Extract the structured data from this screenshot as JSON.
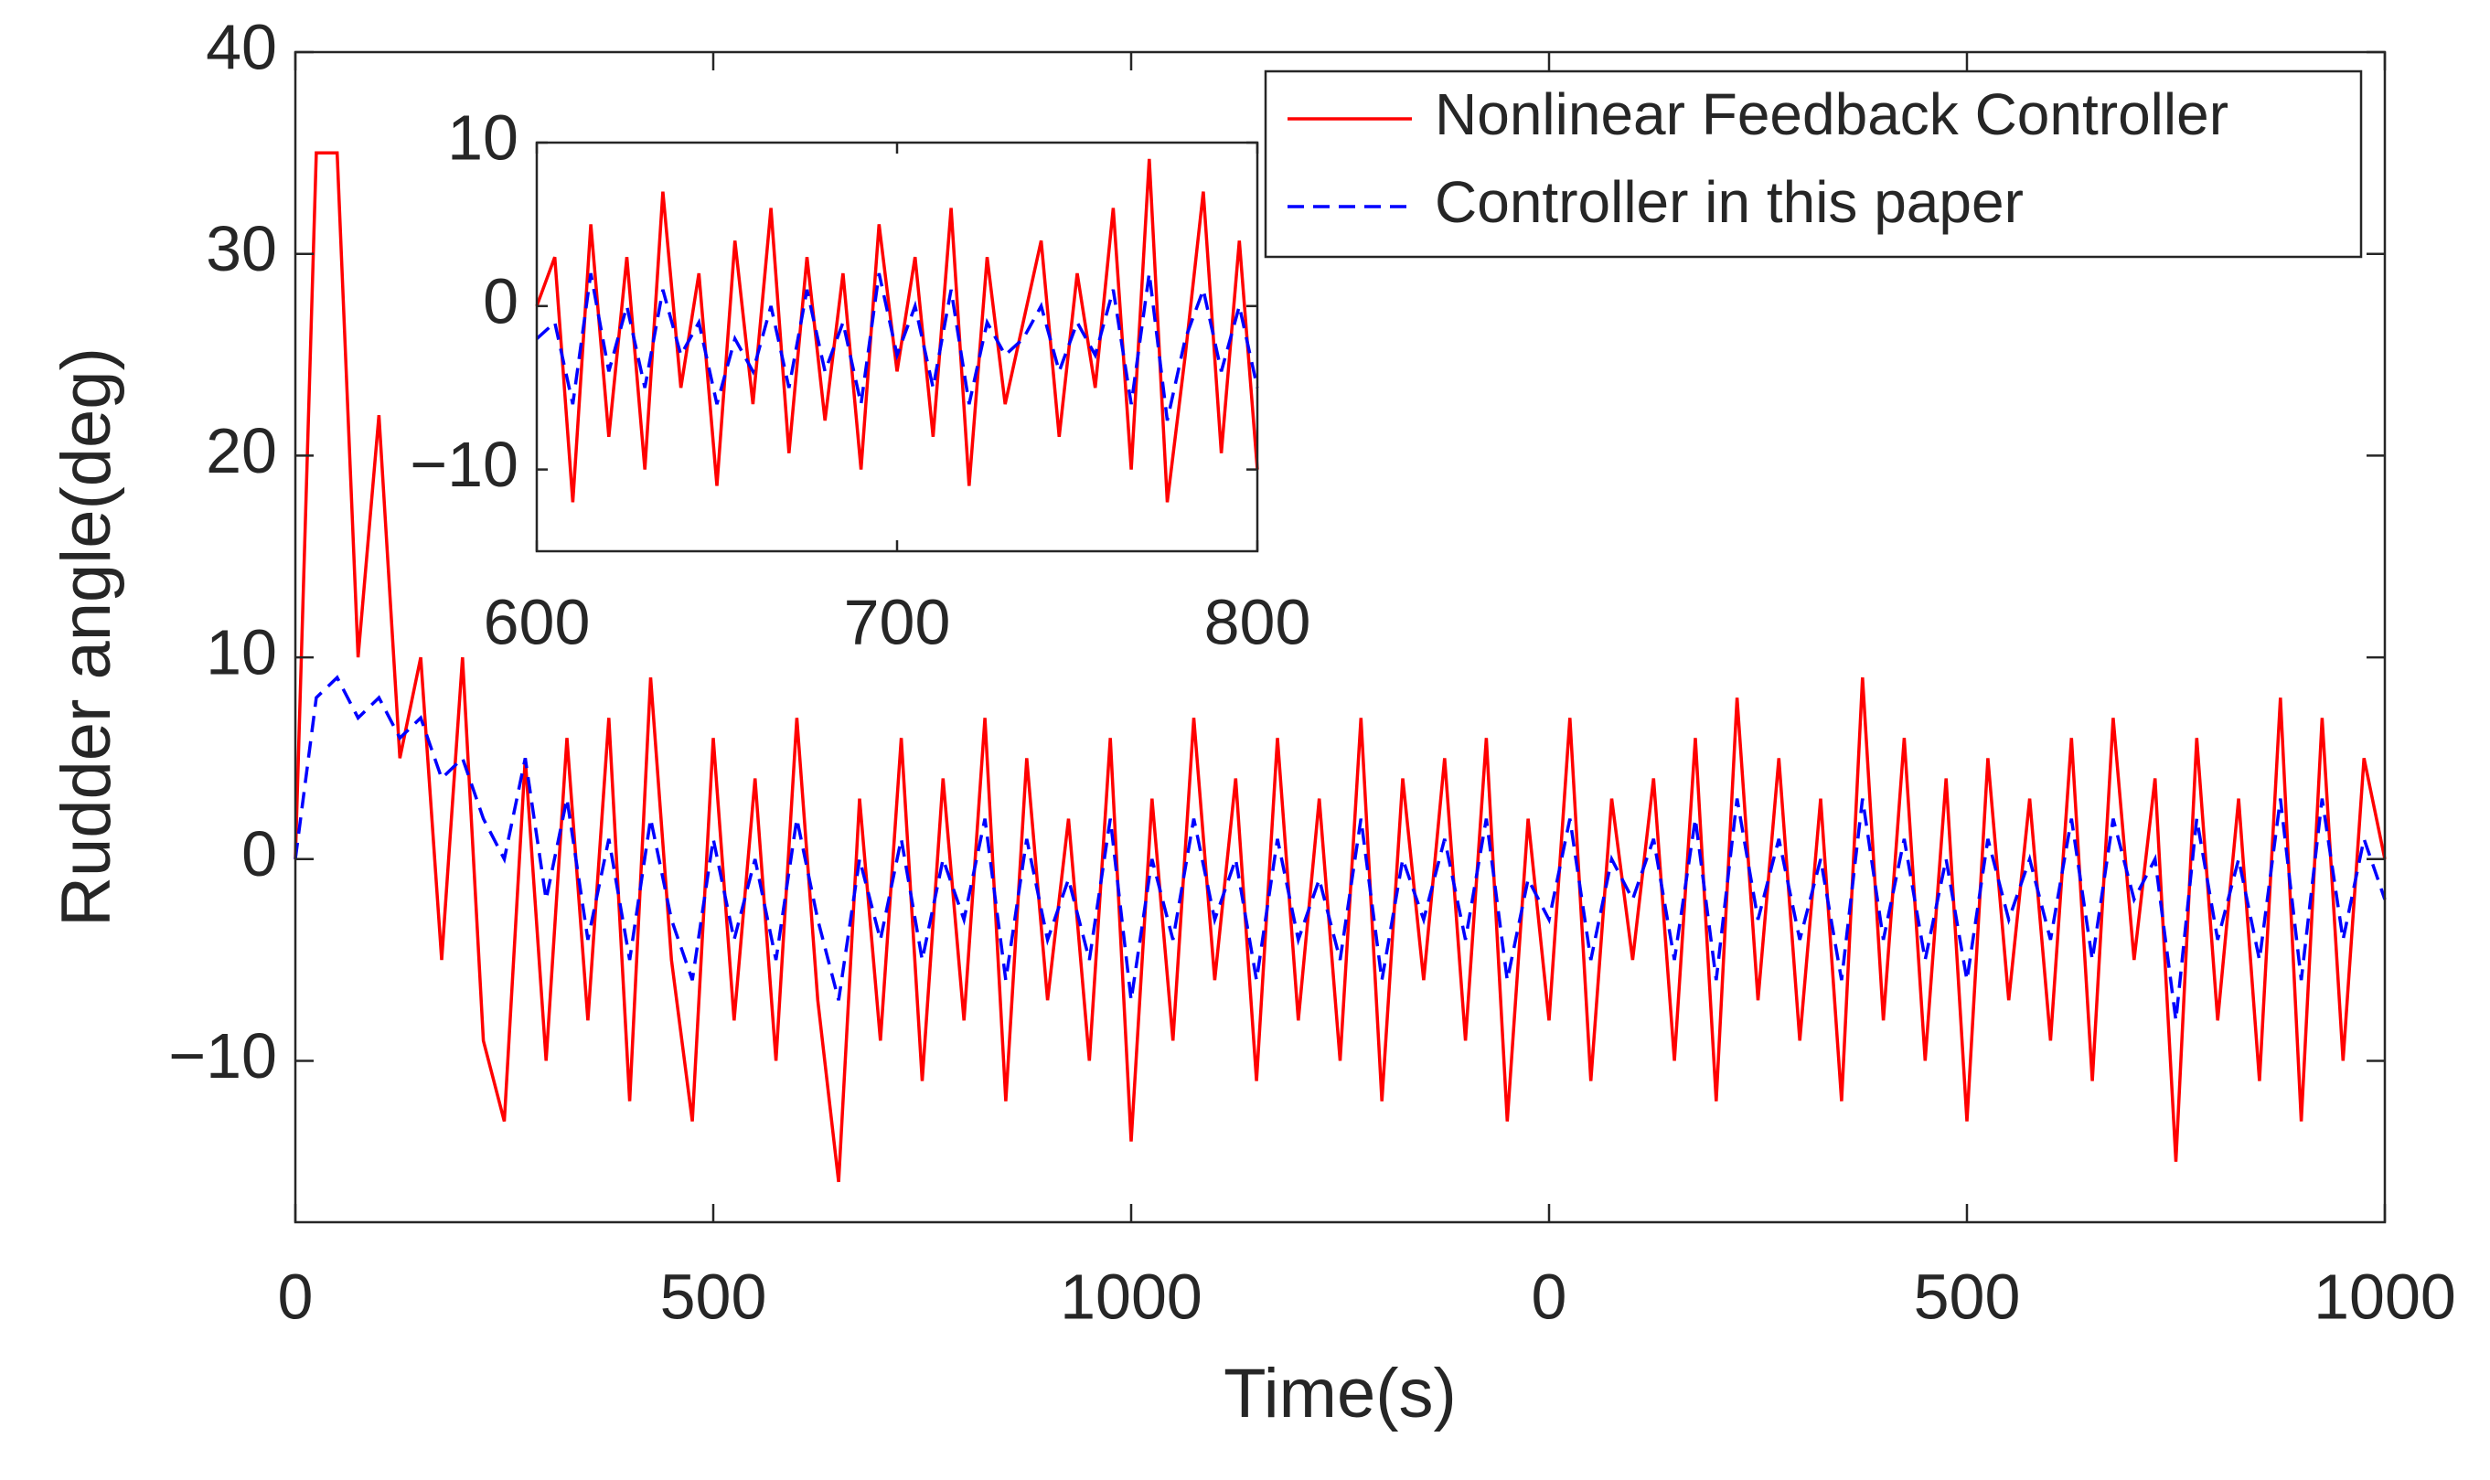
{
  "chart_data": [
    {
      "type": "line",
      "xlabel": "Time(s)",
      "ylabel": "Rudder angle(deg)",
      "x": [
        0,
        25,
        50,
        75,
        100,
        125,
        150,
        175,
        200,
        225,
        250,
        275,
        300,
        325,
        350,
        375,
        400,
        425,
        450,
        475,
        500,
        525,
        550,
        575,
        600,
        625,
        650,
        675,
        700,
        725,
        750,
        775,
        800,
        825,
        850,
        875,
        900,
        925,
        950,
        975,
        1000,
        1025,
        1050,
        1075,
        1100,
        1125,
        1150,
        1175,
        1200,
        1225,
        1250,
        1275,
        1300,
        1325,
        1350,
        1375,
        1400,
        1425,
        1450,
        1475,
        1500,
        1525,
        1550,
        1575,
        1600,
        1625,
        1650,
        1675,
        1700,
        1725,
        1750,
        1775,
        1800,
        1825,
        1850,
        1875,
        1900,
        1925,
        1950,
        1975,
        2000,
        2025,
        2050,
        2075,
        2100,
        2125,
        2150,
        2175,
        2200,
        2225,
        2250,
        2275,
        2300,
        2325,
        2350,
        2375,
        2400,
        2425,
        2450,
        2475,
        2500
      ],
      "series": [
        {
          "name": "Nonlinear Feedback Controller",
          "color": "#ff0000",
          "dashed": false,
          "values": [
            0,
            35,
            35,
            10,
            22,
            5,
            10,
            -5,
            10,
            -9,
            -13,
            5,
            -10,
            6,
            -8,
            7,
            -12,
            9,
            -5,
            -13,
            6,
            -8,
            4,
            -10,
            7,
            -7,
            -16,
            3,
            -9,
            6,
            -11,
            4,
            -8,
            7,
            -12,
            5,
            -7,
            2,
            -10,
            6,
            -14,
            3,
            -9,
            7,
            -6,
            4,
            -11,
            6,
            -8,
            3,
            -10,
            7,
            -12,
            4,
            -6,
            5,
            -9,
            6,
            -13,
            2,
            -8,
            7,
            -11,
            3,
            -5,
            4,
            -10,
            6,
            -12,
            8,
            -7,
            5,
            -9,
            3,
            -12,
            9,
            -8,
            6,
            -10,
            4,
            -13,
            5,
            -7,
            3,
            -9,
            6,
            -11,
            7,
            -5,
            4,
            -15,
            6,
            -8,
            3,
            -11,
            8,
            -13,
            7,
            -10,
            5,
            0
          ]
        },
        {
          "name": "Controller in this paper",
          "color": "#0000ff",
          "dashed": true,
          "values": [
            0,
            8,
            9,
            7,
            8,
            6,
            7,
            4,
            5,
            2,
            0,
            5,
            -2,
            3,
            -4,
            1,
            -5,
            2,
            -3,
            -6,
            1,
            -4,
            0,
            -5,
            2,
            -3,
            -7,
            0,
            -4,
            1,
            -5,
            0,
            -3,
            2,
            -6,
            1,
            -4,
            -1,
            -5,
            2,
            -7,
            0,
            -4,
            2,
            -3,
            0,
            -6,
            1,
            -4,
            -1,
            -5,
            2,
            -6,
            0,
            -3,
            1,
            -4,
            2,
            -6,
            -1,
            -3,
            2,
            -5,
            0,
            -2,
            1,
            -5,
            2,
            -6,
            3,
            -3,
            1,
            -4,
            0,
            -6,
            3,
            -4,
            1,
            -5,
            0,
            -6,
            1,
            -3,
            0,
            -4,
            2,
            -5,
            2,
            -2,
            0,
            -8,
            2,
            -4,
            0,
            -5,
            3,
            -6,
            3,
            -4,
            1,
            -2
          ]
        }
      ],
      "xlim": [
        0,
        2500
      ],
      "xticks": [
        0,
        500,
        1000,
        {
          "value": 1500,
          "label": "0"
        },
        {
          "value": 2000,
          "label": "500"
        },
        {
          "value": 2500,
          "label": "1000"
        }
      ],
      "ylim": [
        -18,
        40
      ],
      "yticks": [
        {
          "value": -10,
          "label": "−10"
        },
        0,
        10,
        20,
        30,
        40
      ],
      "legend": "upper right"
    },
    {
      "type": "line",
      "x": [
        600,
        605,
        610,
        615,
        620,
        625,
        630,
        635,
        640,
        645,
        650,
        655,
        660,
        665,
        670,
        675,
        680,
        685,
        690,
        695,
        700,
        705,
        710,
        715,
        720,
        725,
        730,
        735,
        740,
        745,
        750,
        755,
        760,
        765,
        770,
        775,
        780,
        785,
        790,
        795,
        800
      ],
      "series": [
        {
          "color": "#ff0000",
          "dashed": false,
          "values": [
            0,
            3,
            -12,
            5,
            -8,
            3,
            -10,
            7,
            -5,
            2,
            -11,
            4,
            -6,
            6,
            -9,
            3,
            -7,
            2,
            -10,
            5,
            -4,
            3,
            -8,
            6,
            -11,
            3,
            -6,
            -1,
            4,
            -8,
            2,
            -5,
            6,
            -10,
            9,
            -12,
            -3,
            7,
            -9,
            4,
            -10
          ]
        },
        {
          "color": "#0000ff",
          "dashed": true,
          "values": [
            -2,
            -1,
            -6,
            2,
            -4,
            0,
            -5,
            1,
            -3,
            -1,
            -6,
            -2,
            -4,
            0,
            -5,
            1,
            -4,
            -1,
            -6,
            2,
            -3,
            0,
            -5,
            1,
            -6,
            -1,
            -3,
            -2,
            0,
            -4,
            -1,
            -3,
            1,
            -6,
            2,
            -7,
            -2,
            1,
            -4,
            0,
            -5
          ]
        }
      ],
      "xlim": [
        600,
        800
      ],
      "xticks": [
        600,
        700,
        800
      ],
      "ylim": [
        -15,
        10
      ],
      "yticks": [
        {
          "value": -10,
          "label": "−10"
        },
        0,
        10
      ]
    }
  ]
}
